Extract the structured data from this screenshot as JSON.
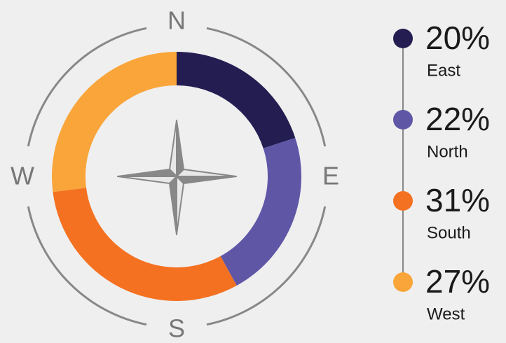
{
  "chart_data": {
    "type": "pie",
    "donut": true,
    "categories": [
      "East",
      "North",
      "South",
      "West"
    ],
    "values": [
      20,
      22,
      31,
      27
    ],
    "value_labels": [
      "20%",
      "22%",
      "31%",
      "27%"
    ],
    "colors": [
      "#231d52",
      "#5f56a6",
      "#f47121",
      "#f9a53a"
    ]
  },
  "compass": {
    "north": "N",
    "east": "E",
    "south": "S",
    "west": "W"
  }
}
